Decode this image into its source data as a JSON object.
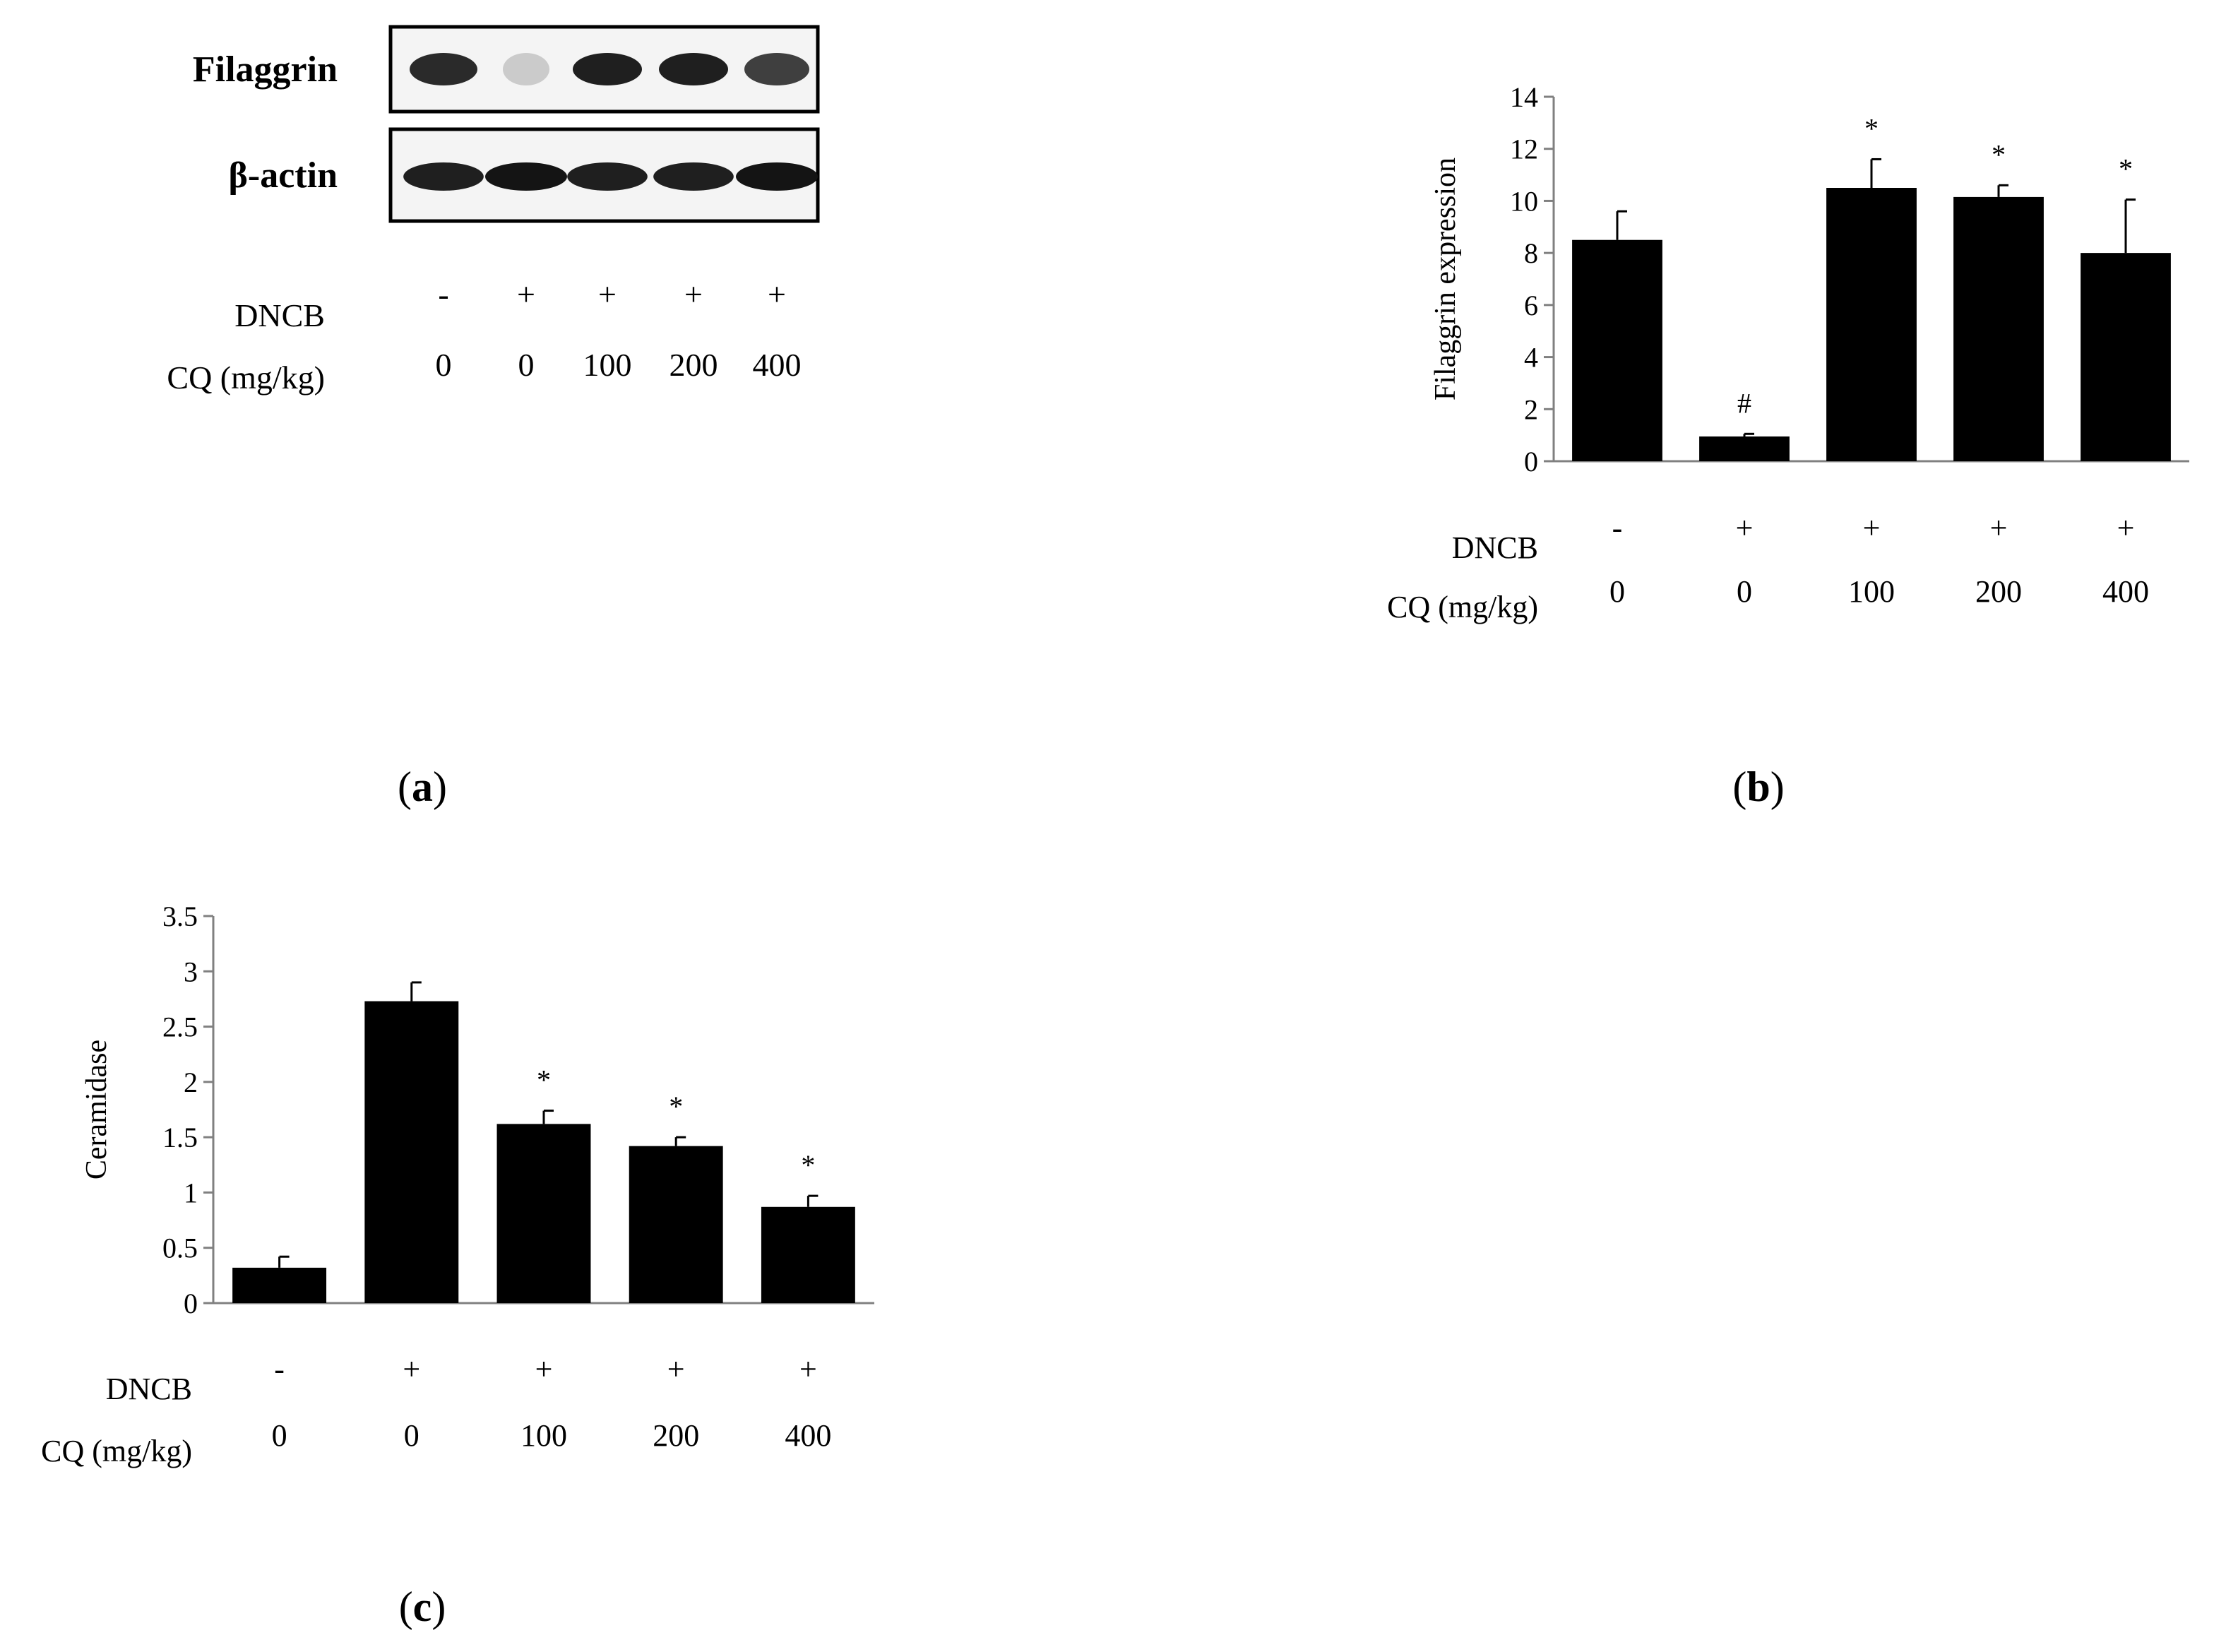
{
  "colors": {
    "bar": "#000000",
    "axis": "#808080",
    "background": "#ffffff",
    "blot_bg": "#f4f4f4"
  },
  "panel_a": {
    "caption": "a",
    "blots": [
      {
        "label": "Filaggrin",
        "intensities": [
          0.9,
          0.15,
          0.95,
          0.95,
          0.8
        ]
      },
      {
        "label": "β-actin",
        "intensities": [
          0.95,
          1.0,
          0.95,
          0.95,
          1.0
        ]
      }
    ],
    "row_labels": {
      "dncb": "DNCB",
      "cq": "CQ (mg/kg)"
    },
    "dncb": [
      "-",
      "+",
      "+",
      "+",
      "+"
    ],
    "cq": [
      "0",
      "0",
      "100",
      "200",
      "400"
    ]
  },
  "panel_b": {
    "caption": "b"
  },
  "panel_c": {
    "caption": "c"
  },
  "chart_data": [
    {
      "type": "bar",
      "panel": "b",
      "ylabel": "Filaggrin expression",
      "ylim": [
        0,
        14
      ],
      "yticks": [
        "0",
        "2",
        "4",
        "6",
        "8",
        "10",
        "12",
        "14"
      ],
      "ytick_values": [
        0,
        2,
        4,
        6,
        8,
        10,
        12,
        14
      ],
      "values": [
        8.5,
        0.95,
        10.5,
        10.15,
        8.0
      ],
      "errors": [
        1.1,
        0.1,
        1.1,
        0.45,
        2.05
      ],
      "annotations": [
        "",
        "#",
        "*",
        "*",
        "*"
      ],
      "row_labels": {
        "dncb": "DNCB",
        "cq": "CQ (mg/kg)"
      },
      "dncb": [
        "-",
        "+",
        "+",
        "+",
        "+"
      ],
      "cq": [
        "0",
        "0",
        "100",
        "200",
        "400"
      ],
      "grid": false
    },
    {
      "type": "bar",
      "panel": "c",
      "ylabel": "Ceramidase",
      "ylim": [
        0,
        3.5
      ],
      "yticks": [
        "0",
        "0.5",
        "1",
        "1.5",
        "2",
        "2.5",
        "3",
        "3.5"
      ],
      "ytick_values": [
        0,
        0.5,
        1,
        1.5,
        2,
        2.5,
        3,
        3.5
      ],
      "values": [
        0.32,
        2.73,
        1.62,
        1.42,
        0.87
      ],
      "errors": [
        0.1,
        0.17,
        0.12,
        0.08,
        0.1
      ],
      "annotations": [
        "",
        "",
        "*",
        "*",
        "*"
      ],
      "row_labels": {
        "dncb": "DNCB",
        "cq": "CQ (mg/kg)"
      },
      "dncb": [
        "-",
        "+",
        "+",
        "+",
        "+"
      ],
      "cq": [
        "0",
        "0",
        "100",
        "200",
        "400"
      ],
      "grid": false
    }
  ]
}
